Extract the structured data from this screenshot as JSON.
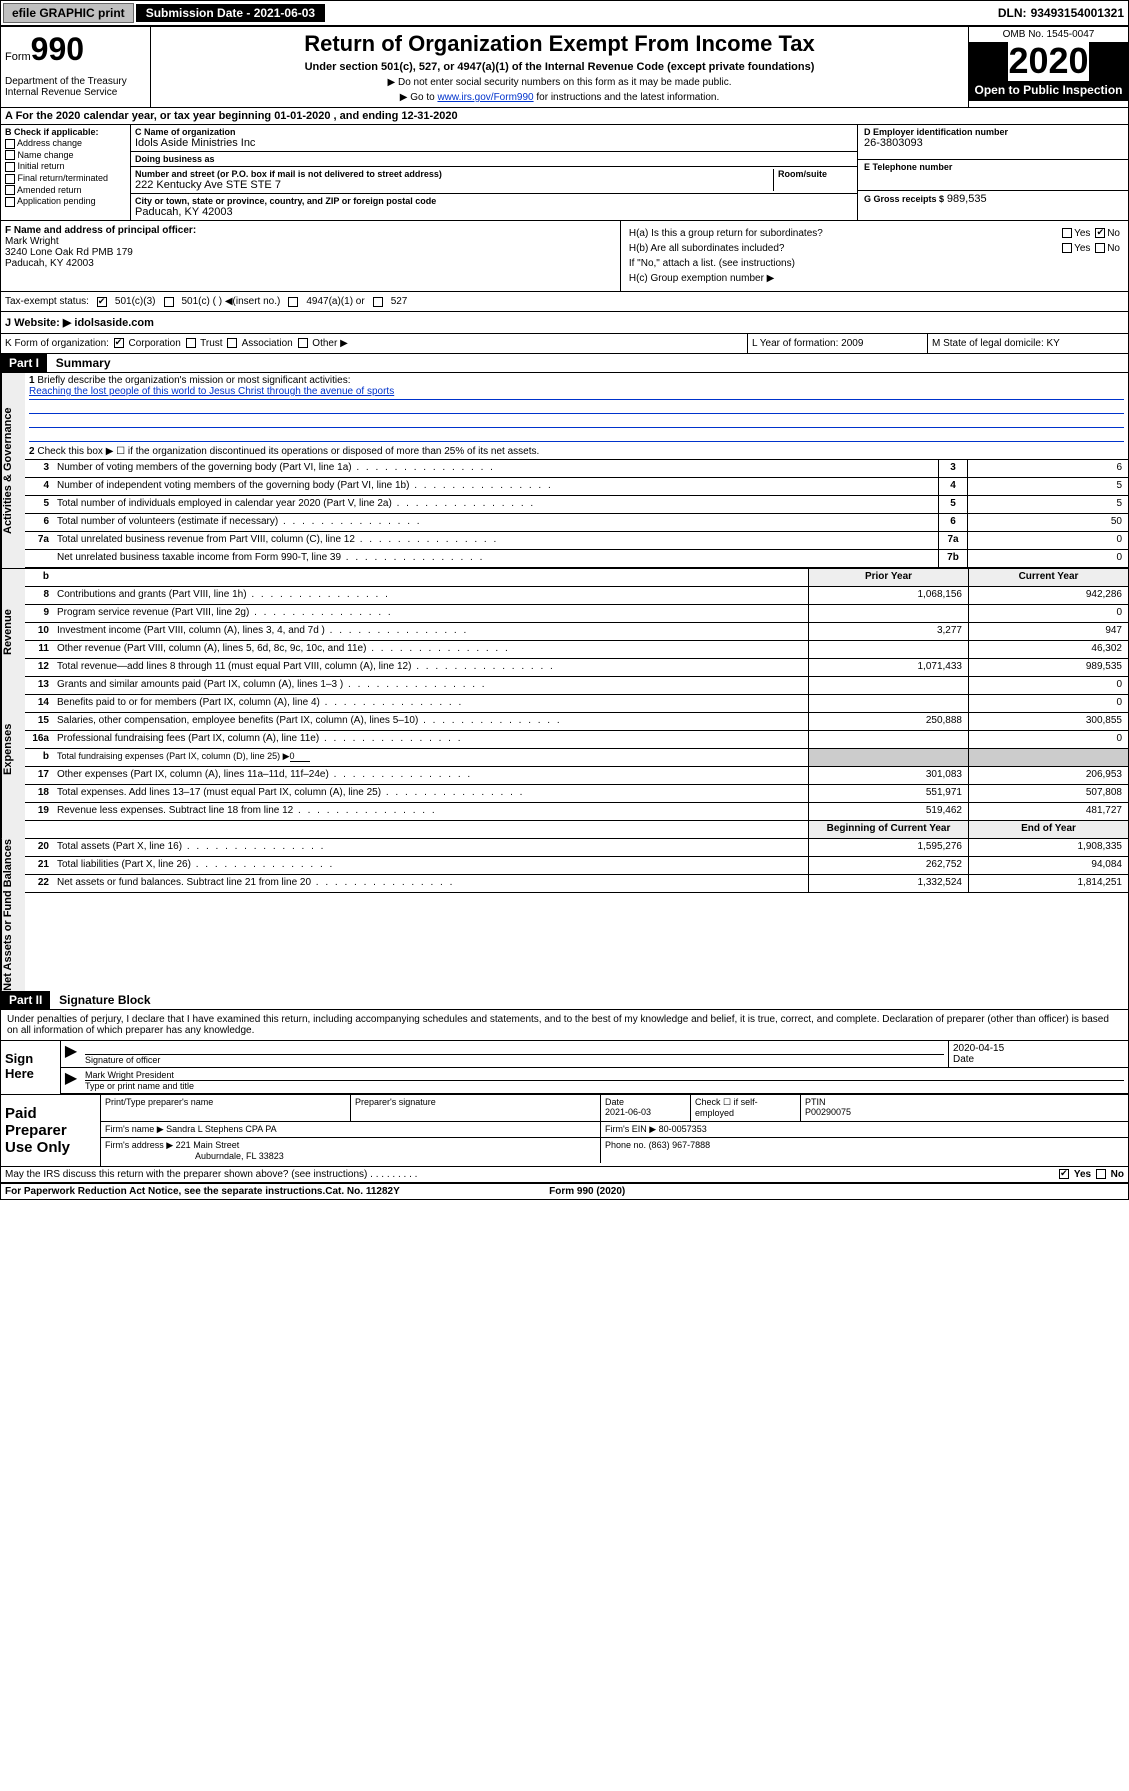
{
  "topbar": {
    "efile": "efile GRAPHIC print",
    "sub_label": "Submission Date - 2021-06-03",
    "dln_label": "DLN:",
    "dln": "93493154001321"
  },
  "header": {
    "form_word": "Form",
    "form_num": "990",
    "dept": "Department of the Treasury\nInternal Revenue Service",
    "title": "Return of Organization Exempt From Income Tax",
    "subtitle": "Under section 501(c), 527, or 4947(a)(1) of the Internal Revenue Code (except private foundations)",
    "note1": "▶ Do not enter social security numbers on this form as it may be made public.",
    "note2_pre": "▶ Go to ",
    "note2_link": "www.irs.gov/Form990",
    "note2_post": " for instructions and the latest information.",
    "omb": "OMB No. 1545-0047",
    "year": "2020",
    "open": "Open to Public Inspection"
  },
  "period": "A For the 2020 calendar year, or tax year beginning 01-01-2020   , and ending 12-31-2020",
  "colB": {
    "label": "B Check if applicable:",
    "addr": "Address change",
    "name": "Name change",
    "init": "Initial return",
    "final": "Final return/terminated",
    "amend": "Amended return",
    "app": "Application pending"
  },
  "colC": {
    "name_label": "C Name of organization",
    "name": "Idols Aside Ministries Inc",
    "dba_label": "Doing business as",
    "dba": "",
    "street_label": "Number and street (or P.O. box if mail is not delivered to street address)",
    "street": "222 Kentucky Ave STE STE 7",
    "room_label": "Room/suite",
    "city_label": "City or town, state or province, country, and ZIP or foreign postal code",
    "city": "Paducah, KY  42003"
  },
  "colD": {
    "ein_label": "D Employer identification number",
    "ein": "26-3803093",
    "tel_label": "E Telephone number",
    "tel": "",
    "gross_label": "G Gross receipts $",
    "gross": "989,535"
  },
  "sectionF": {
    "label": "F  Name and address of principal officer:",
    "name": "Mark Wright",
    "addr1": "3240 Lone Oak Rd PMB 179",
    "addr2": "Paducah, KY  42003"
  },
  "sectionH": {
    "a": "H(a)  Is this a group return for subordinates?",
    "b": "H(b)  Are all subordinates included?",
    "b_note": "If \"No,\" attach a list. (see instructions)",
    "c": "H(c)  Group exemption number ▶"
  },
  "taxExempt": {
    "label": "Tax-exempt status:",
    "c3": "501(c)(3)",
    "c": "501(c) (   ) ◀(insert no.)",
    "a1": "4947(a)(1) or",
    "s527": "527"
  },
  "website": {
    "label": "J Website: ▶",
    "val": "idolsaside.com"
  },
  "klm": {
    "k": "K Form of organization:",
    "k_corp": "Corporation",
    "k_trust": "Trust",
    "k_assoc": "Association",
    "k_other": "Other ▶",
    "l_label": "L Year of formation:",
    "l_val": "2009",
    "m_label": "M State of legal domicile:",
    "m_val": "KY"
  },
  "part1": {
    "hdr": "Part I",
    "title": "Summary",
    "q1": "Briefly describe the organization's mission or most significant activities:",
    "mission": "Reaching the lost people of this world to Jesus Christ through the avenue of sports",
    "q2": "Check this box ▶ ☐  if the organization discontinued its operations or disposed of more than 25% of its net assets.",
    "rows_simple": [
      {
        "n": "3",
        "d": "Number of voting members of the governing body (Part VI, line 1a)",
        "r": "3",
        "v": "6"
      },
      {
        "n": "4",
        "d": "Number of independent voting members of the governing body (Part VI, line 1b)",
        "r": "4",
        "v": "5"
      },
      {
        "n": "5",
        "d": "Total number of individuals employed in calendar year 2020 (Part V, line 2a)",
        "r": "5",
        "v": "5"
      },
      {
        "n": "6",
        "d": "Total number of volunteers (estimate if necessary)",
        "r": "6",
        "v": "50"
      },
      {
        "n": "7a",
        "d": "Total unrelated business revenue from Part VIII, column (C), line 12",
        "r": "7a",
        "v": "0"
      },
      {
        "n": "",
        "d": "Net unrelated business taxable income from Form 990-T, line 39",
        "r": "7b",
        "v": "0"
      }
    ],
    "col_hdr_b": "b",
    "col_prior": "Prior Year",
    "col_current": "Current Year",
    "revenue": [
      {
        "n": "8",
        "d": "Contributions and grants (Part VIII, line 1h)",
        "p": "1,068,156",
        "c": "942,286"
      },
      {
        "n": "9",
        "d": "Program service revenue (Part VIII, line 2g)",
        "p": "",
        "c": "0"
      },
      {
        "n": "10",
        "d": "Investment income (Part VIII, column (A), lines 3, 4, and 7d )",
        "p": "3,277",
        "c": "947"
      },
      {
        "n": "11",
        "d": "Other revenue (Part VIII, column (A), lines 5, 6d, 8c, 9c, 10c, and 11e)",
        "p": "",
        "c": "46,302"
      },
      {
        "n": "12",
        "d": "Total revenue—add lines 8 through 11 (must equal Part VIII, column (A), line 12)",
        "p": "1,071,433",
        "c": "989,535"
      }
    ],
    "expenses": [
      {
        "n": "13",
        "d": "Grants and similar amounts paid (Part IX, column (A), lines 1–3 )",
        "p": "",
        "c": "0"
      },
      {
        "n": "14",
        "d": "Benefits paid to or for members (Part IX, column (A), line 4)",
        "p": "",
        "c": "0"
      },
      {
        "n": "15",
        "d": "Salaries, other compensation, employee benefits (Part IX, column (A), lines 5–10)",
        "p": "250,888",
        "c": "300,855"
      },
      {
        "n": "16a",
        "d": "Professional fundraising fees (Part IX, column (A), line 11e)",
        "p": "",
        "c": "0"
      },
      {
        "n": "b",
        "d": "Total fundraising expenses (Part IX, column (D), line 25) ▶",
        "p": null,
        "c": null,
        "inline": "0"
      },
      {
        "n": "17",
        "d": "Other expenses (Part IX, column (A), lines 11a–11d, 11f–24e)",
        "p": "301,083",
        "c": "206,953"
      },
      {
        "n": "18",
        "d": "Total expenses. Add lines 13–17 (must equal Part IX, column (A), line 25)",
        "p": "551,971",
        "c": "507,808"
      },
      {
        "n": "19",
        "d": "Revenue less expenses. Subtract line 18 from line 12",
        "p": "519,462",
        "c": "481,727"
      }
    ],
    "col_begin": "Beginning of Current Year",
    "col_end": "End of Year",
    "net": [
      {
        "n": "20",
        "d": "Total assets (Part X, line 16)",
        "p": "1,595,276",
        "c": "1,908,335"
      },
      {
        "n": "21",
        "d": "Total liabilities (Part X, line 26)",
        "p": "262,752",
        "c": "94,084"
      },
      {
        "n": "22",
        "d": "Net assets or fund balances. Subtract line 21 from line 20",
        "p": "1,332,524",
        "c": "1,814,251"
      }
    ],
    "side_gov": "Activities & Governance",
    "side_rev": "Revenue",
    "side_exp": "Expenses",
    "side_net": "Net Assets or Fund Balances"
  },
  "part2": {
    "hdr": "Part II",
    "title": "Signature Block",
    "decl": "Under penalties of perjury, I declare that I have examined this return, including accompanying schedules and statements, and to the best of my knowledge and belief, it is true, correct, and complete. Declaration of preparer (other than officer) is based on all information of which preparer has any knowledge.",
    "sign_here": "Sign Here",
    "sig_officer": "Signature of officer",
    "sig_date": "2020-04-15",
    "date_label": "Date",
    "name_title_val": "Mark Wright President",
    "name_title_label": "Type or print name and title",
    "paid": "Paid Preparer Use Only",
    "prep_name_label": "Print/Type preparer's name",
    "prep_sig_label": "Preparer's signature",
    "prep_date_label": "Date",
    "prep_date": "2021-06-03",
    "prep_check": "Check ☐ if self-employed",
    "ptin_label": "PTIN",
    "ptin": "P00290075",
    "firm_name_label": "Firm's name    ▶",
    "firm_name": "Sandra L Stephens CPA PA",
    "firm_ein_label": "Firm's EIN ▶",
    "firm_ein": "80-0057353",
    "firm_addr_label": "Firm's address ▶",
    "firm_addr1": "221 Main Street",
    "firm_addr2": "Auburndale, FL  33823",
    "phone_label": "Phone no.",
    "phone": "(863) 967-7888",
    "discuss": "May the IRS discuss this return with the preparer shown above? (see instructions)",
    "yes": "Yes",
    "no": "No"
  },
  "footer": {
    "pra": "For Paperwork Reduction Act Notice, see the separate instructions.",
    "cat": "Cat. No. 11282Y",
    "form": "Form 990 (2020)"
  }
}
